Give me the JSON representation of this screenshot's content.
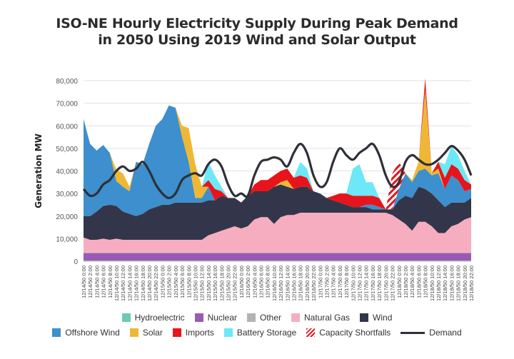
{
  "chart_data": {
    "type": "area",
    "title_lines": [
      "ISO-NE Hourly Electricity Supply During Peak Demand",
      "in 2050 Using 2019 Wind and Solar Output"
    ],
    "ylabel": "Generation MW",
    "ylim": [
      0,
      80000
    ],
    "yticks": [
      0,
      10000,
      20000,
      30000,
      40000,
      50000,
      60000,
      70000,
      80000
    ],
    "ytick_labels": [
      "0",
      "10,000",
      "20,000",
      "30,000",
      "40,000",
      "50,000",
      "60,000",
      "70,000",
      "80,000"
    ],
    "grid": true,
    "legend_position": "bottom",
    "x_tick_labels": [
      "12/14/50 0:00",
      "12/14/50 2:00",
      "12/14/50 4:00",
      "12/14/50 6:00",
      "12/14/50 8:00",
      "12/14/50 10:00",
      "12/14/50 12:00",
      "12/14/50 14:00",
      "12/14/50 16:00",
      "12/14/50 18:00",
      "12/14/50 20:00",
      "12/14/50 22:00",
      "12/15/50 0:00",
      "12/15/50 2:00",
      "12/15/50 4:00",
      "12/15/50 6:00",
      "12/15/50 8:00",
      "12/15/50 10:00",
      "12/15/50 12:00",
      "12/15/50 14:00",
      "12/15/50 16:00",
      "12/15/50 18:00",
      "12/15/50 20:00",
      "12/15/50 22:00",
      "12/16/50 0:00",
      "12/16/50 2:00",
      "12/16/50 4:00",
      "12/16/50 6:00",
      "12/16/50 8:00",
      "12/16/50 10:00",
      "12/16/50 12:00",
      "12/16/50 14:00",
      "12/16/50 16:00",
      "12/16/50 18:00",
      "12/16/50 20:00",
      "12/16/50 22:00",
      "12/17/50 0:00",
      "12/17/50 2:00",
      "12/17/50 4:00",
      "12/17/50 6:00",
      "12/17/50 8:00",
      "12/17/50 10:00",
      "12/17/50 12:00",
      "12/17/50 14:00",
      "12/17/50 16:00",
      "12/17/50 18:00",
      "12/17/50 20:00",
      "12/17/50 22:00",
      "12/18/50 0:00",
      "12/18/50 2:00",
      "12/18/50 4:00",
      "12/18/50 6:00",
      "12/18/50 8:00",
      "12/18/50 10:00",
      "12/18/50 12:00",
      "12/18/50 14:00",
      "12/18/50 16:00",
      "12/18/50 18:00",
      "12/18/50 20:00",
      "12/18/50 22:00"
    ],
    "series": [
      {
        "name": "Hydroelectric",
        "color": "#6fc9b3",
        "values": [
          300,
          300,
          300,
          300,
          300,
          300,
          300,
          300,
          300,
          300,
          300,
          300,
          300,
          300,
          300,
          300,
          300,
          300,
          300,
          300,
          300,
          300,
          300,
          300,
          300,
          300,
          300,
          300,
          300,
          300,
          300,
          300,
          300,
          300,
          300,
          300,
          300,
          300,
          300,
          300,
          300,
          300,
          300,
          300,
          300,
          300,
          300,
          300,
          300,
          300,
          300,
          300,
          300,
          300,
          300,
          300,
          300,
          300,
          300,
          300
        ]
      },
      {
        "name": "Nuclear",
        "color": "#9b59b6",
        "values": [
          3300,
          3300,
          3300,
          3300,
          3300,
          3300,
          3300,
          3300,
          3300,
          3300,
          3300,
          3300,
          3300,
          3300,
          3300,
          3300,
          3300,
          3300,
          3300,
          3300,
          3300,
          3300,
          3300,
          3300,
          3300,
          3300,
          3300,
          3300,
          3300,
          3300,
          3300,
          3300,
          3300,
          3300,
          3300,
          3300,
          3300,
          3300,
          3300,
          3300,
          3300,
          3300,
          3300,
          3300,
          3300,
          3300,
          3300,
          3300,
          3300,
          3300,
          3300,
          3300,
          3300,
          3300,
          3300,
          3300,
          3300,
          3300,
          3300,
          3300
        ]
      },
      {
        "name": "Other",
        "color": "#b3b3b3",
        "values": [
          200,
          200,
          200,
          200,
          200,
          200,
          200,
          200,
          200,
          200,
          200,
          200,
          200,
          200,
          200,
          200,
          200,
          200,
          200,
          200,
          200,
          200,
          200,
          200,
          200,
          200,
          200,
          200,
          200,
          200,
          200,
          200,
          200,
          200,
          200,
          200,
          200,
          200,
          200,
          200,
          200,
          200,
          200,
          200,
          200,
          200,
          200,
          200,
          200,
          200,
          200,
          200,
          200,
          200,
          200,
          200,
          200,
          200,
          200,
          200
        ]
      },
      {
        "name": "Natural Gas",
        "color": "#f7adc0",
        "values": [
          6700,
          5700,
          5700,
          6200,
          5700,
          6200,
          5700,
          5700,
          5700,
          5700,
          5700,
          5700,
          5700,
          5700,
          5700,
          5700,
          5700,
          5700,
          5700,
          7700,
          8700,
          9700,
          10700,
          11700,
          10700,
          11700,
          14700,
          15700,
          15700,
          12700,
          15700,
          16700,
          16700,
          17700,
          17700,
          17700,
          17700,
          17700,
          17700,
          17700,
          17700,
          17700,
          17700,
          17700,
          17700,
          17700,
          17700,
          16700,
          14700,
          12700,
          9700,
          13700,
          13700,
          11700,
          8700,
          8700,
          11700,
          12700,
          14700,
          15700
        ]
      },
      {
        "name": "Wind",
        "color": "#33364a",
        "values": [
          9500,
          10500,
          12500,
          14500,
          15500,
          14500,
          12500,
          11500,
          10500,
          11500,
          13500,
          14500,
          15500,
          15500,
          16500,
          16500,
          16500,
          16500,
          16500,
          15500,
          14500,
          15500,
          13500,
          12500,
          11500,
          13500,
          12500,
          11500,
          11500,
          16500,
          14500,
          12500,
          11500,
          11500,
          11500,
          9500,
          8500,
          6500,
          5500,
          4500,
          3500,
          2500,
          2500,
          2500,
          1500,
          1500,
          1500,
          2500,
          8500,
          12500,
          14500,
          15500,
          14500,
          14500,
          14500,
          11500,
          10500,
          9500,
          7500,
          8500
        ]
      },
      {
        "name": "Offshore Wind",
        "color": "#3d8fcd",
        "values": [
          43000,
          32000,
          27000,
          27000,
          23000,
          11000,
          11000,
          10000,
          24000,
          22000,
          29000,
          36000,
          38000,
          44000,
          42000,
          29000,
          18000,
          2000,
          2000,
          6000,
          0,
          0,
          0,
          0,
          0,
          0,
          0,
          0,
          0,
          0,
          0,
          0,
          0,
          0,
          0,
          0,
          0,
          0,
          0,
          0,
          0,
          0,
          0,
          1000,
          2000,
          1000,
          0,
          0,
          5000,
          10000,
          7000,
          7000,
          9000,
          8000,
          12000,
          8000,
          12000,
          10000,
          5000,
          4000
        ]
      },
      {
        "name": "Solar",
        "color": "#efb834",
        "values": [
          0,
          0,
          0,
          0,
          0,
          5000,
          6000,
          2000,
          0,
          0,
          0,
          0,
          0,
          0,
          0,
          5000,
          15000,
          15000,
          5000,
          0,
          0,
          0,
          0,
          0,
          0,
          0,
          0,
          0,
          0,
          0,
          1000,
          3000,
          0,
          0,
          0,
          0,
          0,
          0,
          0,
          0,
          0,
          0,
          0,
          0,
          0,
          0,
          0,
          0,
          0,
          0,
          1000,
          4000,
          35000,
          1000,
          2000,
          0,
          0,
          0,
          0,
          0
        ]
      },
      {
        "name": "Imports",
        "color": "#e8141c",
        "values": [
          0,
          0,
          0,
          0,
          0,
          0,
          0,
          0,
          0,
          0,
          0,
          0,
          0,
          0,
          0,
          0,
          0,
          0,
          0,
          3000,
          5000,
          2000,
          0,
          0,
          0,
          0,
          3000,
          5000,
          5000,
          5000,
          5000,
          5000,
          5000,
          5000,
          4000,
          0,
          0,
          0,
          2000,
          4000,
          5000,
          5000,
          5000,
          4000,
          4000,
          4000,
          0,
          0,
          0,
          0,
          0,
          0,
          5000,
          0,
          3000,
          5000,
          5000,
          5000,
          5000,
          2000
        ]
      },
      {
        "name": "Battery Storage",
        "color": "#6de8f6",
        "values": [
          0,
          0,
          0,
          0,
          0,
          0,
          0,
          0,
          0,
          0,
          0,
          0,
          0,
          0,
          0,
          0,
          0,
          0,
          0,
          8000,
          6000,
          2000,
          0,
          0,
          0,
          0,
          0,
          0,
          0,
          0,
          0,
          0,
          0,
          6000,
          4000,
          0,
          0,
          0,
          0,
          0,
          0,
          12000,
          14000,
          6000,
          6000,
          0,
          0,
          0,
          0,
          0,
          0,
          0,
          0,
          0,
          0,
          6000,
          8000,
          6000,
          4000,
          0
        ]
      },
      {
        "name": "Capacity Shortfalls",
        "color": "#e8141c",
        "values": [
          0,
          0,
          0,
          0,
          0,
          0,
          0,
          0,
          0,
          0,
          0,
          0,
          0,
          0,
          0,
          0,
          0,
          0,
          0,
          0,
          0,
          0,
          0,
          0,
          0,
          0,
          0,
          0,
          0,
          0,
          0,
          0,
          0,
          0,
          0,
          0,
          0,
          0,
          0,
          0,
          0,
          0,
          0,
          0,
          0,
          0,
          0,
          16000,
          12000,
          0,
          0,
          0,
          0,
          0,
          0,
          0,
          0,
          0,
          0,
          0
        ]
      },
      {
        "name": "Demand",
        "color": "#2e3038",
        "values": [
          32000,
          29000,
          30000,
          34000,
          36000,
          40000,
          42000,
          40000,
          41000,
          44000,
          40000,
          34000,
          30000,
          28000,
          30000,
          36000,
          38000,
          39000,
          38000,
          43000,
          45000,
          42000,
          34000,
          29000,
          30000,
          29000,
          38000,
          44000,
          45000,
          46000,
          45000,
          42000,
          48000,
          52000,
          48000,
          38000,
          33000,
          35000,
          44000,
          50000,
          47000,
          45000,
          48000,
          50000,
          52000,
          47000,
          38000,
          33000,
          35000,
          44000,
          47000,
          45000,
          43000,
          43000,
          45000,
          48000,
          51000,
          49000,
          45000,
          38000
        ]
      }
    ]
  }
}
